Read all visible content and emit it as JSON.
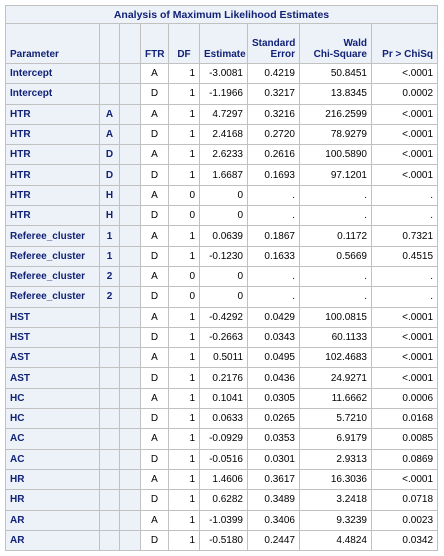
{
  "title": "Analysis of Maximum Likelihood Estimates",
  "columns": {
    "parameter": "Parameter",
    "ftr": "FTR",
    "df": "DF",
    "estimate": "Estimate",
    "std_error": [
      "Standard",
      "Error"
    ],
    "wald": [
      "Wald",
      "Chi-Square"
    ],
    "p": "Pr > ChiSq"
  },
  "rows": [
    {
      "param": "Intercept",
      "lvl": "",
      "ftr": "A",
      "df": "1",
      "est": "-3.0081",
      "se": "0.4219",
      "wald": "50.8451",
      "p": "<.0001"
    },
    {
      "param": "Intercept",
      "lvl": "",
      "ftr": "D",
      "df": "1",
      "est": "-1.1966",
      "se": "0.3217",
      "wald": "13.8345",
      "p": "0.0002"
    },
    {
      "param": "HTR",
      "lvl": "A",
      "ftr": "A",
      "df": "1",
      "est": "4.7297",
      "se": "0.3216",
      "wald": "216.2599",
      "p": "<.0001"
    },
    {
      "param": "HTR",
      "lvl": "A",
      "ftr": "D",
      "df": "1",
      "est": "2.4168",
      "se": "0.2720",
      "wald": "78.9279",
      "p": "<.0001"
    },
    {
      "param": "HTR",
      "lvl": "D",
      "ftr": "A",
      "df": "1",
      "est": "2.6233",
      "se": "0.2616",
      "wald": "100.5890",
      "p": "<.0001"
    },
    {
      "param": "HTR",
      "lvl": "D",
      "ftr": "D",
      "df": "1",
      "est": "1.6687",
      "se": "0.1693",
      "wald": "97.1201",
      "p": "<.0001"
    },
    {
      "param": "HTR",
      "lvl": "H",
      "ftr": "A",
      "df": "0",
      "est": "0",
      "se": ".",
      "wald": ".",
      "p": "."
    },
    {
      "param": "HTR",
      "lvl": "H",
      "ftr": "D",
      "df": "0",
      "est": "0",
      "se": ".",
      "wald": ".",
      "p": "."
    },
    {
      "param": "Referee_cluster",
      "lvl": "1",
      "ftr": "A",
      "df": "1",
      "est": "0.0639",
      "se": "0.1867",
      "wald": "0.1172",
      "p": "0.7321"
    },
    {
      "param": "Referee_cluster",
      "lvl": "1",
      "ftr": "D",
      "df": "1",
      "est": "-0.1230",
      "se": "0.1633",
      "wald": "0.5669",
      "p": "0.4515"
    },
    {
      "param": "Referee_cluster",
      "lvl": "2",
      "ftr": "A",
      "df": "0",
      "est": "0",
      "se": ".",
      "wald": ".",
      "p": "."
    },
    {
      "param": "Referee_cluster",
      "lvl": "2",
      "ftr": "D",
      "df": "0",
      "est": "0",
      "se": ".",
      "wald": ".",
      "p": "."
    },
    {
      "param": "HST",
      "lvl": "",
      "ftr": "A",
      "df": "1",
      "est": "-0.4292",
      "se": "0.0429",
      "wald": "100.0815",
      "p": "<.0001"
    },
    {
      "param": "HST",
      "lvl": "",
      "ftr": "D",
      "df": "1",
      "est": "-0.2663",
      "se": "0.0343",
      "wald": "60.1133",
      "p": "<.0001"
    },
    {
      "param": "AST",
      "lvl": "",
      "ftr": "A",
      "df": "1",
      "est": "0.5011",
      "se": "0.0495",
      "wald": "102.4683",
      "p": "<.0001"
    },
    {
      "param": "AST",
      "lvl": "",
      "ftr": "D",
      "df": "1",
      "est": "0.2176",
      "se": "0.0436",
      "wald": "24.9271",
      "p": "<.0001"
    },
    {
      "param": "HC",
      "lvl": "",
      "ftr": "A",
      "df": "1",
      "est": "0.1041",
      "se": "0.0305",
      "wald": "11.6662",
      "p": "0.0006"
    },
    {
      "param": "HC",
      "lvl": "",
      "ftr": "D",
      "df": "1",
      "est": "0.0633",
      "se": "0.0265",
      "wald": "5.7210",
      "p": "0.0168"
    },
    {
      "param": "AC",
      "lvl": "",
      "ftr": "A",
      "df": "1",
      "est": "-0.0929",
      "se": "0.0353",
      "wald": "6.9179",
      "p": "0.0085"
    },
    {
      "param": "AC",
      "lvl": "",
      "ftr": "D",
      "df": "1",
      "est": "-0.0516",
      "se": "0.0301",
      "wald": "2.9313",
      "p": "0.0869"
    },
    {
      "param": "HR",
      "lvl": "",
      "ftr": "A",
      "df": "1",
      "est": "1.4606",
      "se": "0.3617",
      "wald": "16.3036",
      "p": "<.0001"
    },
    {
      "param": "HR",
      "lvl": "",
      "ftr": "D",
      "df": "1",
      "est": "0.6282",
      "se": "0.3489",
      "wald": "3.2418",
      "p": "0.0718"
    },
    {
      "param": "AR",
      "lvl": "",
      "ftr": "A",
      "df": "1",
      "est": "-1.0399",
      "se": "0.3406",
      "wald": "9.3239",
      "p": "0.0023"
    },
    {
      "param": "AR",
      "lvl": "",
      "ftr": "D",
      "df": "1",
      "est": "-0.5180",
      "se": "0.2447",
      "wald": "4.4824",
      "p": "0.0342"
    }
  ]
}
